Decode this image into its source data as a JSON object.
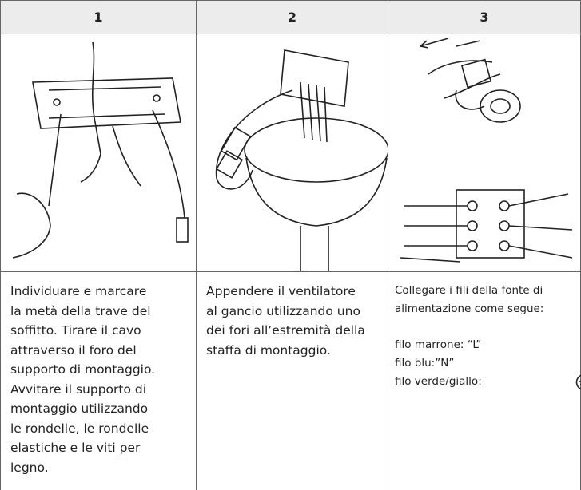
{
  "header": [
    "1",
    "2",
    "3"
  ],
  "steps": [
    {
      "paragraphs": [
        [
          "Individuare e marcare",
          "la metà della trave del",
          "soffitto. Tirare il cavo",
          "attraverso il foro del",
          "supporto di montaggio.",
          "Avvitare il supporto di",
          "montaggio utilizzando",
          "le rondelle, le rondelle",
          "elastiche e le viti per",
          "legno."
        ]
      ]
    },
    {
      "paragraphs": [
        [
          "Appendere il ventilatore",
          "al gancio utilizzando uno",
          "dei fori all’estremità della",
          "staffa di montaggio."
        ]
      ]
    },
    {
      "paragraphs": [
        [
          "Collegare i fili della fonte di",
          "alimentazione come segue:"
        ],
        [
          "filo marrone: “L”",
          "filo blu:”N”",
          "filo verde/giallo:"
        ]
      ]
    }
  ]
}
